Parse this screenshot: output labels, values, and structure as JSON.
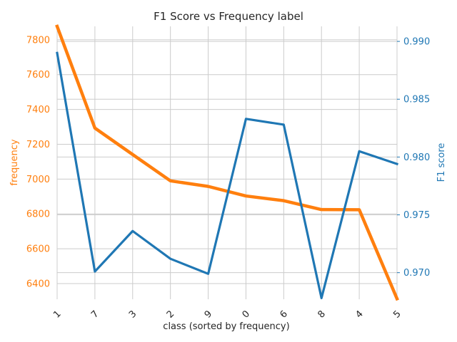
{
  "chart_data": {
    "type": "line",
    "title": "F1 Score vs Frequency label",
    "xlabel": "class (sorted by frequency)",
    "categories": [
      "1",
      "7",
      "3",
      "2",
      "9",
      "0",
      "6",
      "8",
      "4",
      "5"
    ],
    "left_axis": {
      "label": "frequency",
      "color": "#ff7f0e",
      "ylim": [
        6310,
        7877
      ],
      "ticks": [
        6400,
        6600,
        6800,
        7000,
        7200,
        7400,
        7600,
        7800
      ]
    },
    "right_axis": {
      "label": "F1 score",
      "color": "#1f77b4",
      "ylim": [
        0.9677,
        0.9913
      ],
      "ticks": [
        0.97,
        0.975,
        0.98,
        0.985,
        0.99
      ],
      "tick_labels": [
        "0.970",
        "0.975",
        "0.980",
        "0.985",
        "0.990"
      ]
    },
    "series": [
      {
        "axis": "left",
        "color": "#ff7f0e",
        "values": [
          7877,
          7293,
          7141,
          6990,
          6958,
          6903,
          6876,
          6825,
          6824,
          6313
        ]
      },
      {
        "axis": "right",
        "color": "#1f77b4",
        "values": [
          0.989,
          0.9701,
          0.9736,
          0.9712,
          0.9699,
          0.9833,
          0.9828,
          0.9678,
          0.9805,
          0.9794
        ]
      }
    ],
    "grid": true,
    "legend": "none"
  }
}
